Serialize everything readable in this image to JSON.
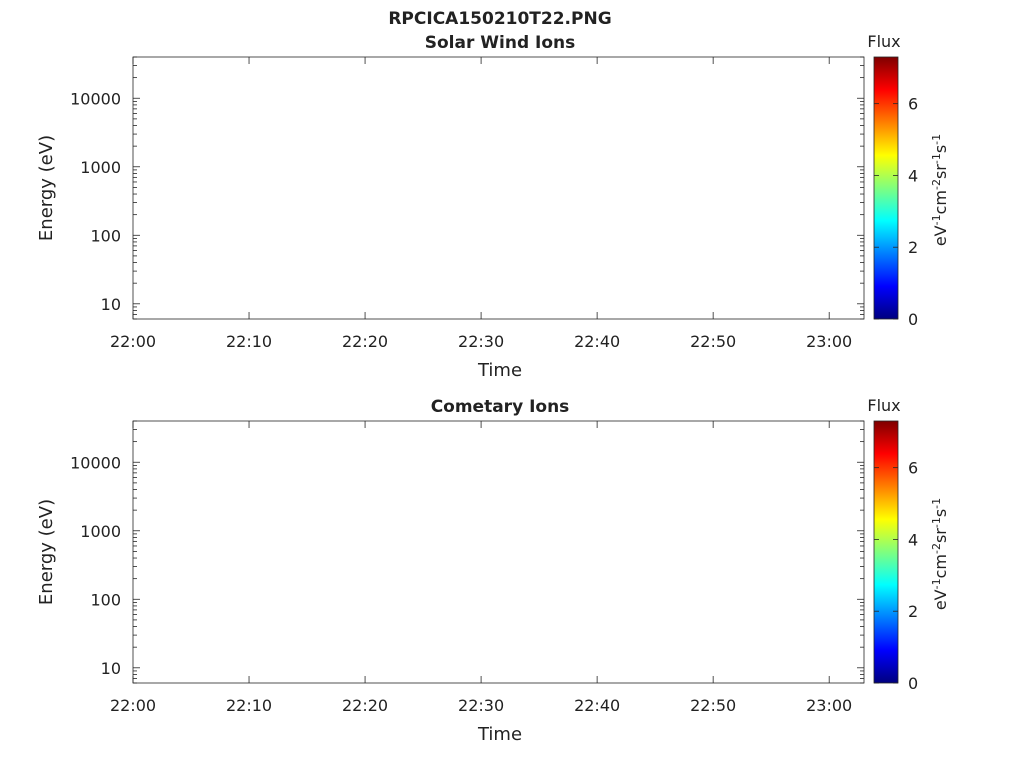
{
  "figure_title": "RPCICA150210T22.PNG",
  "chart_data": [
    {
      "type": "heatmap",
      "title": "Solar Wind Ions",
      "xlabel": "Time",
      "ylabel": "Energy (eV)",
      "x_ticks": [
        "22:00",
        "22:10",
        "22:20",
        "22:30",
        "22:40",
        "22:50",
        "23:00"
      ],
      "x_tick_minutes": [
        0,
        10,
        20,
        30,
        40,
        50,
        60
      ],
      "xlim_minutes": [
        0,
        63
      ],
      "y_scale": "log",
      "y_ticks": [
        10,
        100,
        1000,
        10000
      ],
      "y_tick_labels": [
        "10",
        "100",
        "1000",
        "10000"
      ],
      "ylim": [
        6,
        40000
      ],
      "colorbar": {
        "title": "Flux",
        "label": "eV-1cm-2sr-1s-1",
        "ticks": [
          0,
          2,
          4,
          6
        ],
        "range": [
          0,
          7.3
        ],
        "colormap": [
          "#00007f",
          "#0000ff",
          "#007fff",
          "#00ffff",
          "#7fff7f",
          "#ffff00",
          "#ff7f00",
          "#ff0000",
          "#7f0000"
        ]
      }
    },
    {
      "type": "heatmap",
      "title": "Cometary Ions",
      "xlabel": "Time",
      "ylabel": "Energy (eV)",
      "x_ticks": [
        "22:00",
        "22:10",
        "22:20",
        "22:30",
        "22:40",
        "22:50",
        "23:00"
      ],
      "x_tick_minutes": [
        0,
        10,
        20,
        30,
        40,
        50,
        60
      ],
      "xlim_minutes": [
        0,
        63
      ],
      "y_scale": "log",
      "y_ticks": [
        10,
        100,
        1000,
        10000
      ],
      "y_tick_labels": [
        "10",
        "100",
        "1000",
        "10000"
      ],
      "ylim": [
        6,
        40000
      ],
      "colorbar": {
        "title": "Flux",
        "label": "eV-1cm-2sr-1s-1",
        "ticks": [
          0,
          2,
          4,
          6
        ],
        "range": [
          0,
          7.3
        ],
        "colormap": [
          "#00007f",
          "#0000ff",
          "#007fff",
          "#00ffff",
          "#7fff7f",
          "#ffff00",
          "#ff7f00",
          "#ff0000",
          "#7f0000"
        ]
      }
    }
  ]
}
